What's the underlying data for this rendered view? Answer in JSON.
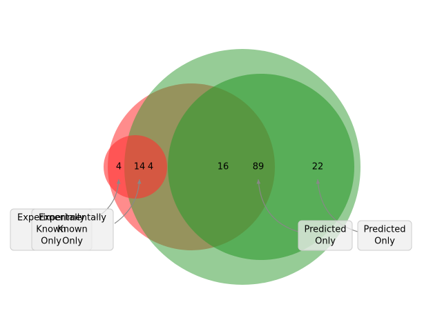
{
  "regions": [
    4,
    14,
    4,
    16,
    89,
    22
  ],
  "annotations": [
    {
      "lines": [
        "Experimentally",
        "Known",
        "Only"
      ]
    },
    {
      "lines": [
        "Experimentally",
        "Known",
        "Only"
      ]
    },
    {
      "lines": [
        "Predicted",
        "Only"
      ]
    },
    {
      "lines": [
        "Predicted",
        "Only"
      ]
    }
  ]
}
